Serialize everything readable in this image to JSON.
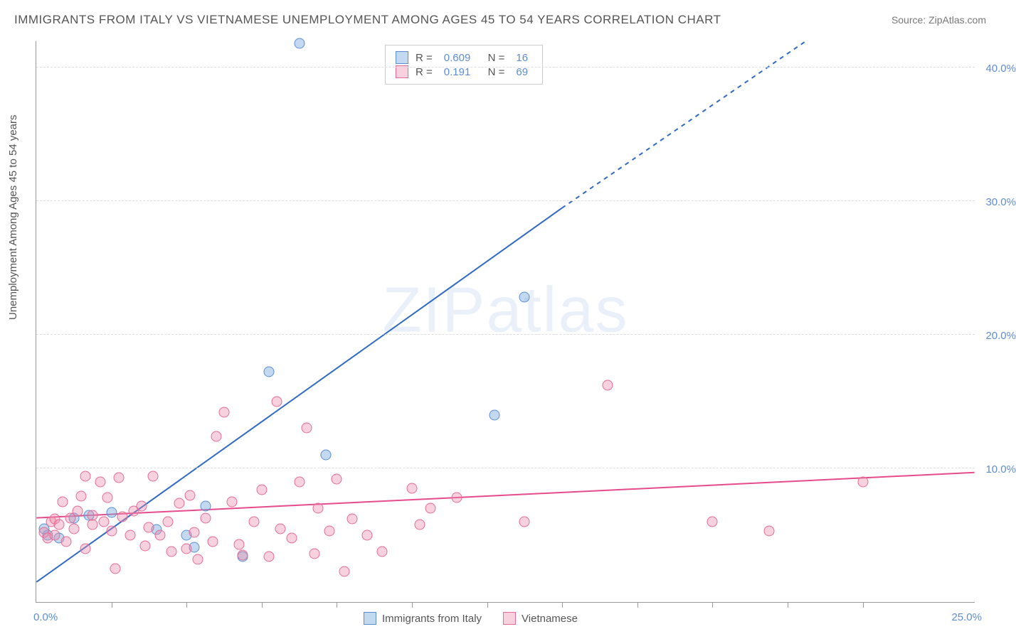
{
  "title": "IMMIGRANTS FROM ITALY VS VIETNAMESE UNEMPLOYMENT AMONG AGES 45 TO 54 YEARS CORRELATION CHART",
  "source": "Source: ZipAtlas.com",
  "ylabel": "Unemployment Among Ages 45 to 54 years",
  "watermark": "ZIPatlas",
  "chart": {
    "type": "scatter",
    "background_color": "#ffffff",
    "grid_color": "#dddddd",
    "axis_color": "#999999",
    "tick_label_color": "#5b8dd6",
    "tick_fontsize": 15,
    "title_fontsize": 17,
    "title_color": "#555555",
    "xlim": [
      0,
      25
    ],
    "ylim": [
      0,
      42
    ],
    "xticks": [
      0,
      25
    ],
    "xtick_labels": [
      "0.0%",
      "25.0%"
    ],
    "yticks": [
      10,
      20,
      30,
      40
    ],
    "ytick_labels": [
      "10.0%",
      "20.0%",
      "30.0%",
      "40.0%"
    ],
    "xtick_minor": [
      2,
      4,
      6,
      8,
      10,
      12,
      14,
      16,
      18,
      20,
      22
    ],
    "series": [
      {
        "name": "Immigrants from Italy",
        "key": "italy",
        "marker_fill": "rgba(120,170,220,0.45)",
        "marker_stroke": "#5b8dd6",
        "line_color": "#2f6ac4",
        "line_width": 2,
        "marker_size": 15,
        "r": 0.609,
        "n": 16,
        "trend": {
          "x1": 0,
          "y1": 1.5,
          "x2": 14.0,
          "y2": 29.5,
          "dash_from_x": 14.0,
          "dash_to_x": 20.5,
          "dash_to_y": 42
        },
        "points": [
          {
            "x": 0.3,
            "y": 5.0
          },
          {
            "x": 0.2,
            "y": 5.5
          },
          {
            "x": 0.6,
            "y": 4.8
          },
          {
            "x": 1.0,
            "y": 6.3
          },
          {
            "x": 1.4,
            "y": 6.5
          },
          {
            "x": 2.0,
            "y": 6.7
          },
          {
            "x": 3.2,
            "y": 5.4
          },
          {
            "x": 4.5,
            "y": 7.2
          },
          {
            "x": 4.0,
            "y": 5.0
          },
          {
            "x": 4.2,
            "y": 4.1
          },
          {
            "x": 5.5,
            "y": 3.4
          },
          {
            "x": 6.2,
            "y": 17.2
          },
          {
            "x": 7.0,
            "y": 41.8
          },
          {
            "x": 7.7,
            "y": 11.0
          },
          {
            "x": 12.2,
            "y": 14.0
          },
          {
            "x": 13.0,
            "y": 22.8
          }
        ]
      },
      {
        "name": "Vietnamese",
        "key": "vietnamese",
        "marker_fill": "rgba(235,140,170,0.40)",
        "marker_stroke": "#e66a94",
        "line_color": "#e64c8b",
        "line_width": 2,
        "marker_size": 15,
        "r": 0.191,
        "n": 69,
        "trend": {
          "x1": 0,
          "y1": 6.3,
          "x2": 25,
          "y2": 9.7
        },
        "points": [
          {
            "x": 0.2,
            "y": 5.2
          },
          {
            "x": 0.3,
            "y": 4.8
          },
          {
            "x": 0.4,
            "y": 6.0
          },
          {
            "x": 0.5,
            "y": 6.2
          },
          {
            "x": 0.5,
            "y": 5.0
          },
          {
            "x": 0.6,
            "y": 5.8
          },
          {
            "x": 0.7,
            "y": 7.5
          },
          {
            "x": 0.8,
            "y": 4.5
          },
          {
            "x": 0.9,
            "y": 6.3
          },
          {
            "x": 1.0,
            "y": 5.5
          },
          {
            "x": 1.1,
            "y": 6.8
          },
          {
            "x": 1.2,
            "y": 7.9
          },
          {
            "x": 1.3,
            "y": 9.4
          },
          {
            "x": 1.3,
            "y": 4.0
          },
          {
            "x": 1.5,
            "y": 5.8
          },
          {
            "x": 1.5,
            "y": 6.5
          },
          {
            "x": 1.7,
            "y": 9.0
          },
          {
            "x": 1.8,
            "y": 6.0
          },
          {
            "x": 1.9,
            "y": 7.8
          },
          {
            "x": 2.0,
            "y": 5.3
          },
          {
            "x": 2.1,
            "y": 2.5
          },
          {
            "x": 2.2,
            "y": 9.3
          },
          {
            "x": 2.3,
            "y": 6.4
          },
          {
            "x": 2.5,
            "y": 5.0
          },
          {
            "x": 2.6,
            "y": 6.8
          },
          {
            "x": 2.8,
            "y": 7.2
          },
          {
            "x": 2.9,
            "y": 4.2
          },
          {
            "x": 3.0,
            "y": 5.6
          },
          {
            "x": 3.1,
            "y": 9.4
          },
          {
            "x": 3.3,
            "y": 5.0
          },
          {
            "x": 3.5,
            "y": 6.0
          },
          {
            "x": 3.6,
            "y": 3.8
          },
          {
            "x": 3.8,
            "y": 7.4
          },
          {
            "x": 4.0,
            "y": 4.0
          },
          {
            "x": 4.1,
            "y": 8.0
          },
          {
            "x": 4.2,
            "y": 5.2
          },
          {
            "x": 4.3,
            "y": 3.2
          },
          {
            "x": 4.5,
            "y": 6.3
          },
          {
            "x": 4.7,
            "y": 4.5
          },
          {
            "x": 4.8,
            "y": 12.4
          },
          {
            "x": 5.0,
            "y": 14.2
          },
          {
            "x": 5.2,
            "y": 7.5
          },
          {
            "x": 5.4,
            "y": 4.3
          },
          {
            "x": 5.5,
            "y": 3.5
          },
          {
            "x": 5.8,
            "y": 6.0
          },
          {
            "x": 6.0,
            "y": 8.4
          },
          {
            "x": 6.2,
            "y": 3.4
          },
          {
            "x": 6.4,
            "y": 15.0
          },
          {
            "x": 6.5,
            "y": 5.5
          },
          {
            "x": 6.8,
            "y": 4.8
          },
          {
            "x": 7.0,
            "y": 9.0
          },
          {
            "x": 7.2,
            "y": 13.0
          },
          {
            "x": 7.4,
            "y": 3.6
          },
          {
            "x": 7.5,
            "y": 7.0
          },
          {
            "x": 7.8,
            "y": 5.3
          },
          {
            "x": 8.0,
            "y": 9.2
          },
          {
            "x": 8.2,
            "y": 2.3
          },
          {
            "x": 8.4,
            "y": 6.2
          },
          {
            "x": 8.8,
            "y": 5.0
          },
          {
            "x": 9.2,
            "y": 3.8
          },
          {
            "x": 10.0,
            "y": 8.5
          },
          {
            "x": 10.2,
            "y": 5.8
          },
          {
            "x": 10.5,
            "y": 7.0
          },
          {
            "x": 11.2,
            "y": 7.8
          },
          {
            "x": 13.0,
            "y": 6.0
          },
          {
            "x": 15.2,
            "y": 16.2
          },
          {
            "x": 18.0,
            "y": 6.0
          },
          {
            "x": 19.5,
            "y": 5.3
          },
          {
            "x": 22.0,
            "y": 9.0
          }
        ]
      }
    ],
    "legend_top": {
      "rows": [
        {
          "swatch_fill": "rgba(120,170,220,0.45)",
          "swatch_stroke": "#5b8dd6",
          "r_label": "R =",
          "r_val": "0.609",
          "n_label": "N =",
          "n_val": "16"
        },
        {
          "swatch_fill": "rgba(235,140,170,0.40)",
          "swatch_stroke": "#e66a94",
          "r_label": "R =",
          "r_val": "0.191",
          "n_label": "N =",
          "n_val": "69"
        }
      ]
    },
    "legend_bottom": [
      {
        "swatch_fill": "rgba(120,170,220,0.45)",
        "swatch_stroke": "#5b8dd6",
        "label": "Immigrants from Italy"
      },
      {
        "swatch_fill": "rgba(235,140,170,0.40)",
        "swatch_stroke": "#e66a94",
        "label": "Vietnamese"
      }
    ]
  }
}
